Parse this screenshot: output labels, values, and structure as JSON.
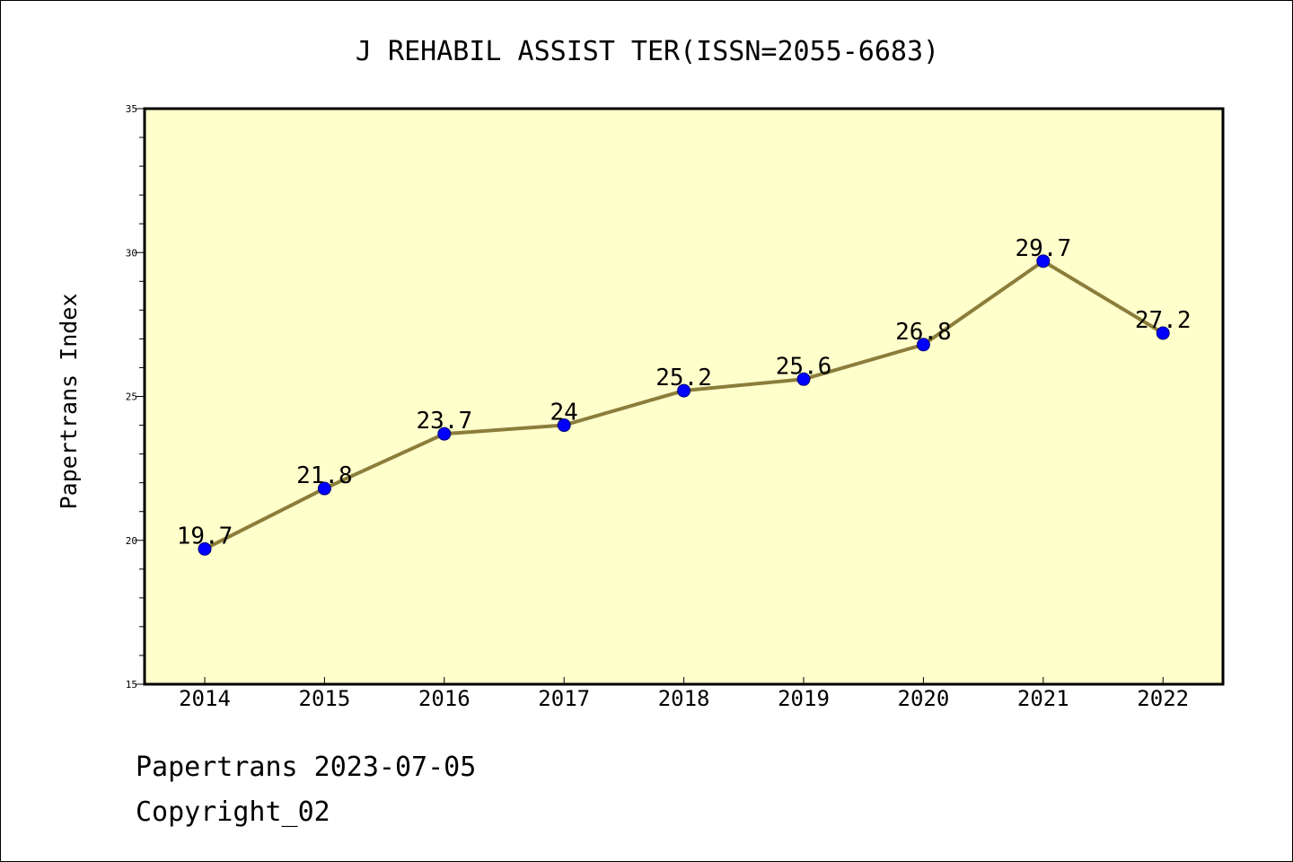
{
  "chart_data": {
    "type": "line",
    "title": "J REHABIL ASSIST TER(ISSN=2055-6683)",
    "xlabel": "",
    "ylabel": "Papertrans Index",
    "ylim": [
      15,
      35
    ],
    "yticks": [
      15,
      20,
      25,
      30,
      35
    ],
    "categories": [
      "2014",
      "2015",
      "2016",
      "2017",
      "2018",
      "2019",
      "2020",
      "2021",
      "2022"
    ],
    "series": [
      {
        "values": [
          19.7,
          21.8,
          23.7,
          24,
          25.2,
          25.6,
          26.8,
          29.7,
          27.2
        ],
        "labels": [
          "19.7",
          "21.8",
          "23.7",
          "24",
          "25.2",
          "25.6",
          "26.8",
          "29.7",
          "27.2"
        ]
      }
    ],
    "grid": false,
    "colors": {
      "plot_background": "#ffffcc",
      "line": "#8b7d3a",
      "marker": "#0000ff"
    }
  },
  "footer": {
    "line1": "Papertrans 2023-07-05",
    "line2": "Copyright_02"
  }
}
